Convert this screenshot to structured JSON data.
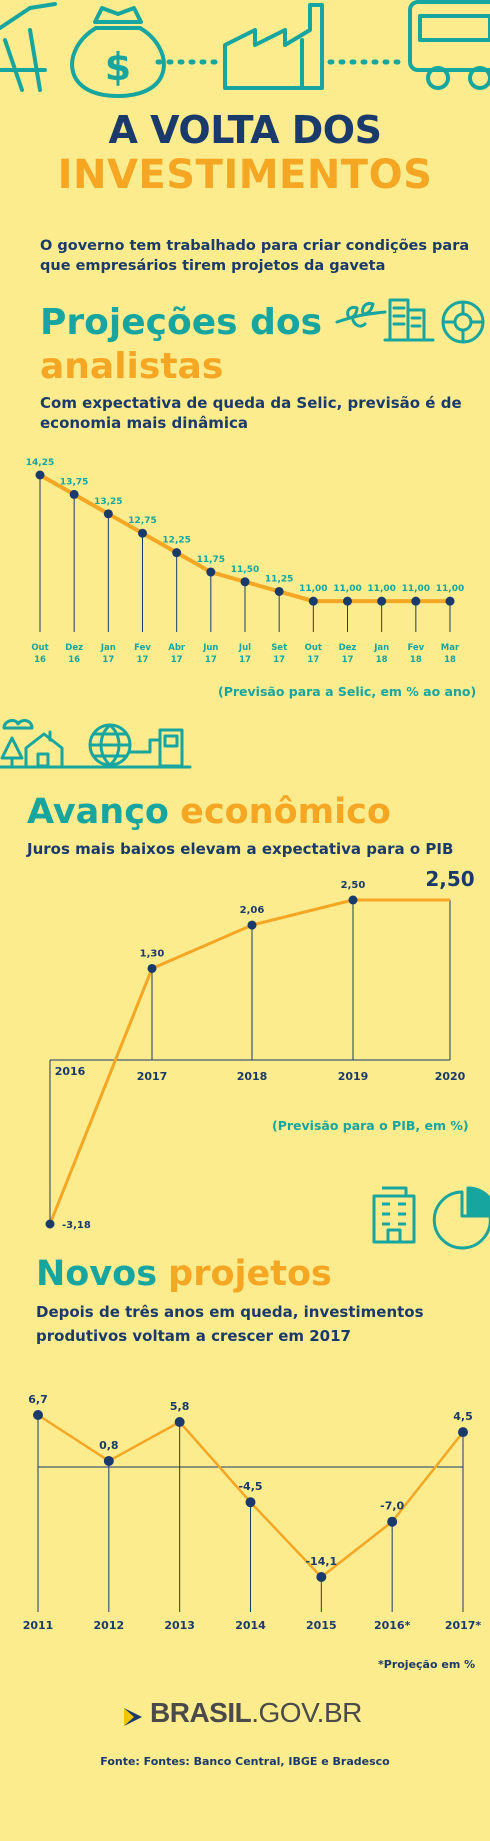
{
  "header": {
    "title_line1": "A VOLTA DOS",
    "title_line2": "INVESTIMENTOS",
    "intro": "O governo tem trabalhado para criar condições para que empresários tirem projetos da gaveta"
  },
  "section1": {
    "heading_teal": "Projeções dos",
    "heading_orange": "analistas",
    "subtitle": "Com expectativa de queda da Selic, previsão é de economia mais dinâmica",
    "note": "(Previsão para a Selic, em % ao ano)"
  },
  "section2": {
    "heading_teal": "Avanço",
    "heading_orange": "econômico",
    "subtitle": "Juros mais baixos elevam a expectativa para o PIB",
    "note": "(Previsão para o PIB, em %)"
  },
  "section3": {
    "heading_teal": "Novos",
    "heading_orange": "projetos",
    "subtitle": "Depois de três anos em queda, investimentos produtivos voltam a crescer em 2017",
    "note": "*Projeção em %"
  },
  "footer": {
    "brand_bold": "BRASIL",
    "brand_rest": ".GOV.BR",
    "source": "Fonte: Fontes: Banco Central, IBGE e Bradesco"
  },
  "colors": {
    "background": "#fdec8e",
    "navy": "#1a3a6b",
    "teal": "#17a5a0",
    "orange": "#f5a623"
  },
  "chart_data": [
    {
      "type": "line",
      "categories": [
        [
          "Out",
          "16"
        ],
        [
          "Dez",
          "16"
        ],
        [
          "Jan",
          "17"
        ],
        [
          "Fev",
          "17"
        ],
        [
          "Abr",
          "17"
        ],
        [
          "Jun",
          "17"
        ],
        [
          "Jul",
          "17"
        ],
        [
          "Set",
          "17"
        ],
        [
          "Out",
          "17"
        ],
        [
          "Dez",
          "17"
        ],
        [
          "Jan",
          "18"
        ],
        [
          "Fev",
          "18"
        ],
        [
          "Mar",
          "18"
        ]
      ],
      "values": [
        14.25,
        13.75,
        13.25,
        12.75,
        12.25,
        11.75,
        11.5,
        11.25,
        11.0,
        11.0,
        11.0,
        11.0,
        11.0
      ],
      "labels": [
        "14,25",
        "13,75",
        "13,25",
        "12,75",
        "12,25",
        "11,75",
        "11,50",
        "11,25",
        "11,00",
        "11,00",
        "11,00",
        "11,00",
        "11,00"
      ],
      "ylim": [
        10.0,
        14.25
      ]
    },
    {
      "type": "line",
      "categories": [
        "2016",
        "2017",
        "2018",
        "2019",
        "2020"
      ],
      "values": [
        -3.18,
        1.3,
        2.06,
        2.5,
        2.5
      ],
      "labels": [
        "-3,18",
        "1,30",
        "2,06",
        "2,50",
        "2,50"
      ],
      "ylim": [
        -3.18,
        2.5
      ]
    },
    {
      "type": "line",
      "categories": [
        "2011",
        "2012",
        "2013",
        "2014",
        "2015",
        "2016*",
        "2017*"
      ],
      "values": [
        6.7,
        0.8,
        5.8,
        -4.5,
        -14.1,
        -7.0,
        4.5
      ],
      "labels": [
        "6,7",
        "0,8",
        "5,8",
        "-4,5",
        "-14,1",
        "-7,0",
        "4,5"
      ],
      "ylim": [
        -14.1,
        6.7
      ]
    }
  ]
}
